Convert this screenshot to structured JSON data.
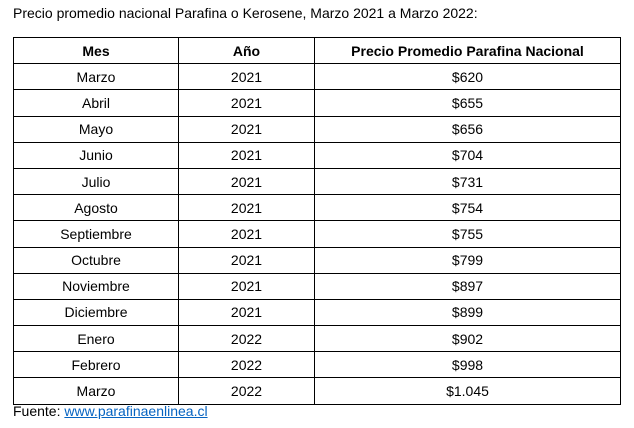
{
  "header": {
    "title": "Precio promedio nacional Parafina o Kerosene, Marzo 2021 a Marzo 2022:"
  },
  "table": {
    "columns": [
      "Mes",
      "Año",
      "Precio Promedio Parafina Nacional"
    ],
    "rows": [
      [
        "Marzo",
        "2021",
        "$620"
      ],
      [
        "Abril",
        "2021",
        "$655"
      ],
      [
        "Mayo",
        "2021",
        "$656"
      ],
      [
        "Junio",
        "2021",
        "$704"
      ],
      [
        "Julio",
        "2021",
        "$731"
      ],
      [
        "Agosto",
        "2021",
        "$754"
      ],
      [
        "Septiembre",
        "2021",
        "$755"
      ],
      [
        "Octubre",
        "2021",
        "$799"
      ],
      [
        "Noviembre",
        "2021",
        "$897"
      ],
      [
        "Diciembre",
        "2021",
        "$899"
      ],
      [
        "Enero",
        "2022",
        "$902"
      ],
      [
        "Febrero",
        "2022",
        "$998"
      ],
      [
        "Marzo",
        "2022",
        "$1.045"
      ]
    ]
  },
  "footer": {
    "label": "Fuente:",
    "link": "www.parafinaenlinea.cl"
  }
}
